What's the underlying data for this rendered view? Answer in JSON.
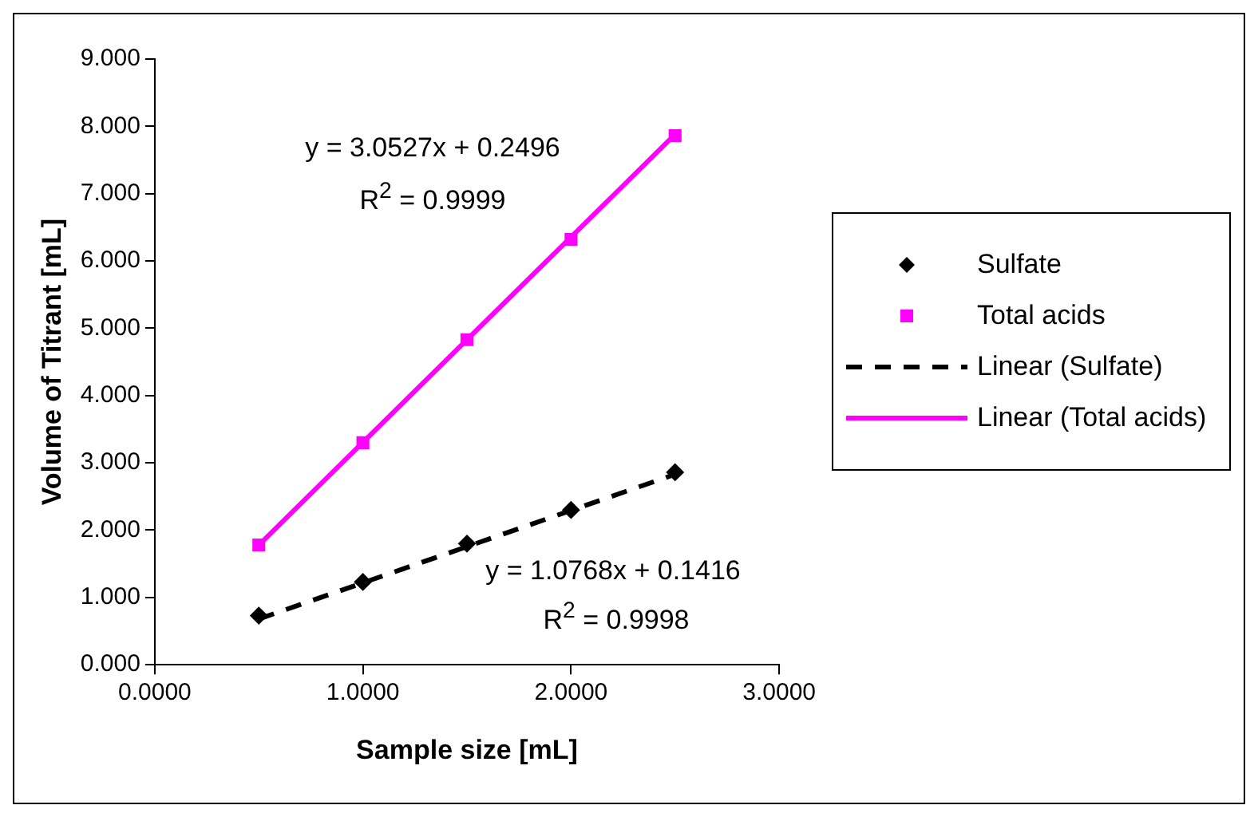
{
  "chart_data": {
    "type": "scatter",
    "xlabel": "Sample size [mL]",
    "ylabel": "Volume of Titrant [mL]",
    "xlim": [
      0,
      3
    ],
    "xticks": [
      {
        "value": 0,
        "label": "0.0000"
      },
      {
        "value": 1,
        "label": "1.0000"
      },
      {
        "value": 2,
        "label": "2.0000"
      },
      {
        "value": 3,
        "label": "3.0000"
      }
    ],
    "ylim": [
      0,
      9
    ],
    "yticks": [
      {
        "value": 0,
        "label": "0.000"
      },
      {
        "value": 1,
        "label": "1.000"
      },
      {
        "value": 2,
        "label": "2.000"
      },
      {
        "value": 3,
        "label": "3.000"
      },
      {
        "value": 4,
        "label": "4.000"
      },
      {
        "value": 5,
        "label": "5.000"
      },
      {
        "value": 6,
        "label": "6.000"
      },
      {
        "value": 7,
        "label": "7.000"
      },
      {
        "value": 8,
        "label": "8.000"
      },
      {
        "value": 9,
        "label": "9.000"
      }
    ],
    "grid": false,
    "legend": "right",
    "series": [
      {
        "name": "Sulfate",
        "type": "scatter",
        "marker": "diamond",
        "color": "#000000",
        "x": [
          0.5,
          1,
          1.5,
          2,
          2.5
        ],
        "values": [
          0.73,
          1.23,
          1.8,
          2.3,
          2.86
        ]
      },
      {
        "name": "Total acids",
        "type": "scatter",
        "marker": "square",
        "color": "#ff00ff",
        "x": [
          0.5,
          1,
          1.5,
          2,
          2.5
        ],
        "values": [
          1.78,
          3.3,
          4.83,
          6.32,
          7.86
        ]
      },
      {
        "name": "Linear (Sulfate)",
        "type": "line",
        "line_style": "dashed",
        "color": "#000000",
        "x": [
          0.5,
          2.5
        ],
        "values": [
          0.68,
          2.83
        ]
      },
      {
        "name": "Linear (Total acids)",
        "type": "line",
        "line_style": "solid",
        "color": "#ff00ff",
        "x": [
          0.5,
          2.5
        ],
        "values": [
          1.78,
          7.88
        ]
      }
    ],
    "annotations": [
      "y = 3.0527x + 0.2496",
      "R$^{2}$ = 0.9999",
      "y = 1.0768x + 0.1416",
      "R$^{2}$ = 0.9998"
    ]
  }
}
